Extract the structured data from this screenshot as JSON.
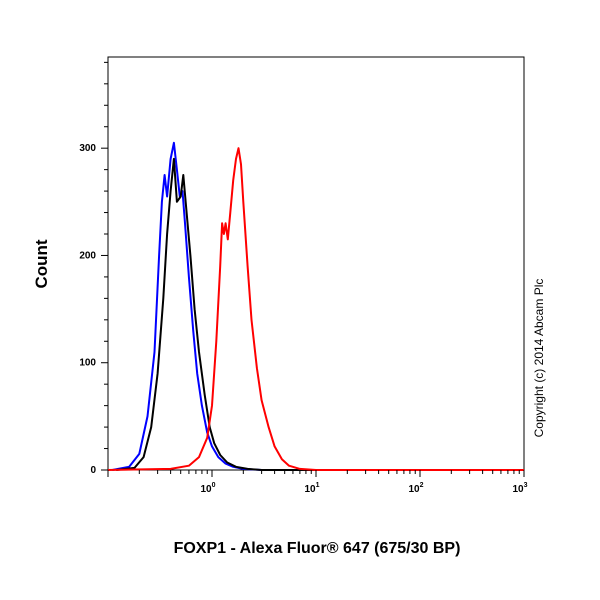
{
  "chart_data": {
    "type": "line",
    "xlabel": "FOXP1 - Alexa Fluor® 647 (675/30 BP)",
    "ylabel": "Count",
    "x_scale": "log",
    "xlim": [
      0.1,
      1000
    ],
    "ylim": [
      0,
      385
    ],
    "x_ticks": [
      {
        "base": "10",
        "exp": "0",
        "value": 1
      },
      {
        "base": "10",
        "exp": "1",
        "value": 10
      },
      {
        "base": "10",
        "exp": "2",
        "value": 100
      },
      {
        "base": "10",
        "exp": "3",
        "value": 1000
      }
    ],
    "y_ticks": [
      {
        "label": "0",
        "value": 0
      },
      {
        "label": "100",
        "value": 100
      },
      {
        "label": "200",
        "value": 200
      },
      {
        "label": "300",
        "value": 300
      }
    ],
    "annotation": "Copyright (c) 2014 Abcam Plc",
    "series": [
      {
        "color": "#0000ff",
        "x": [
          0.11,
          0.16,
          0.2,
          0.24,
          0.28,
          0.31,
          0.33,
          0.35,
          0.37,
          0.4,
          0.43,
          0.46,
          0.49,
          0.52,
          0.55,
          0.6,
          0.66,
          0.72,
          0.8,
          0.9,
          1.0,
          1.15,
          1.35,
          1.6,
          2.0,
          3.0,
          10,
          100,
          1000
        ],
        "y": [
          0,
          3,
          15,
          50,
          110,
          200,
          250,
          275,
          255,
          290,
          305,
          280,
          255,
          260,
          230,
          180,
          130,
          90,
          60,
          35,
          22,
          12,
          6,
          3,
          1,
          0,
          0,
          0,
          0
        ]
      },
      {
        "color": "#000000",
        "x": [
          0.12,
          0.18,
          0.22,
          0.26,
          0.3,
          0.34,
          0.37,
          0.4,
          0.43,
          0.46,
          0.5,
          0.53,
          0.57,
          0.62,
          0.68,
          0.75,
          0.85,
          0.95,
          1.05,
          1.2,
          1.4,
          1.7,
          2.2,
          3.0,
          10,
          100,
          1000
        ],
        "y": [
          0,
          2,
          12,
          40,
          90,
          160,
          220,
          260,
          290,
          250,
          255,
          275,
          240,
          200,
          150,
          110,
          70,
          40,
          25,
          14,
          7,
          3,
          1,
          0,
          0,
          0,
          0
        ]
      },
      {
        "color": "#ff0000",
        "x": [
          0.1,
          0.4,
          0.6,
          0.75,
          0.9,
          1.0,
          1.1,
          1.2,
          1.25,
          1.3,
          1.35,
          1.42,
          1.5,
          1.6,
          1.7,
          1.8,
          1.9,
          2.0,
          2.2,
          2.4,
          2.7,
          3.0,
          3.5,
          4.0,
          4.7,
          5.5,
          7,
          10,
          100,
          1000
        ],
        "y": [
          0,
          1,
          4,
          12,
          30,
          60,
          120,
          190,
          230,
          220,
          230,
          215,
          240,
          270,
          290,
          300,
          285,
          250,
          190,
          140,
          95,
          65,
          40,
          22,
          10,
          4,
          1,
          0,
          0,
          0
        ]
      }
    ]
  }
}
